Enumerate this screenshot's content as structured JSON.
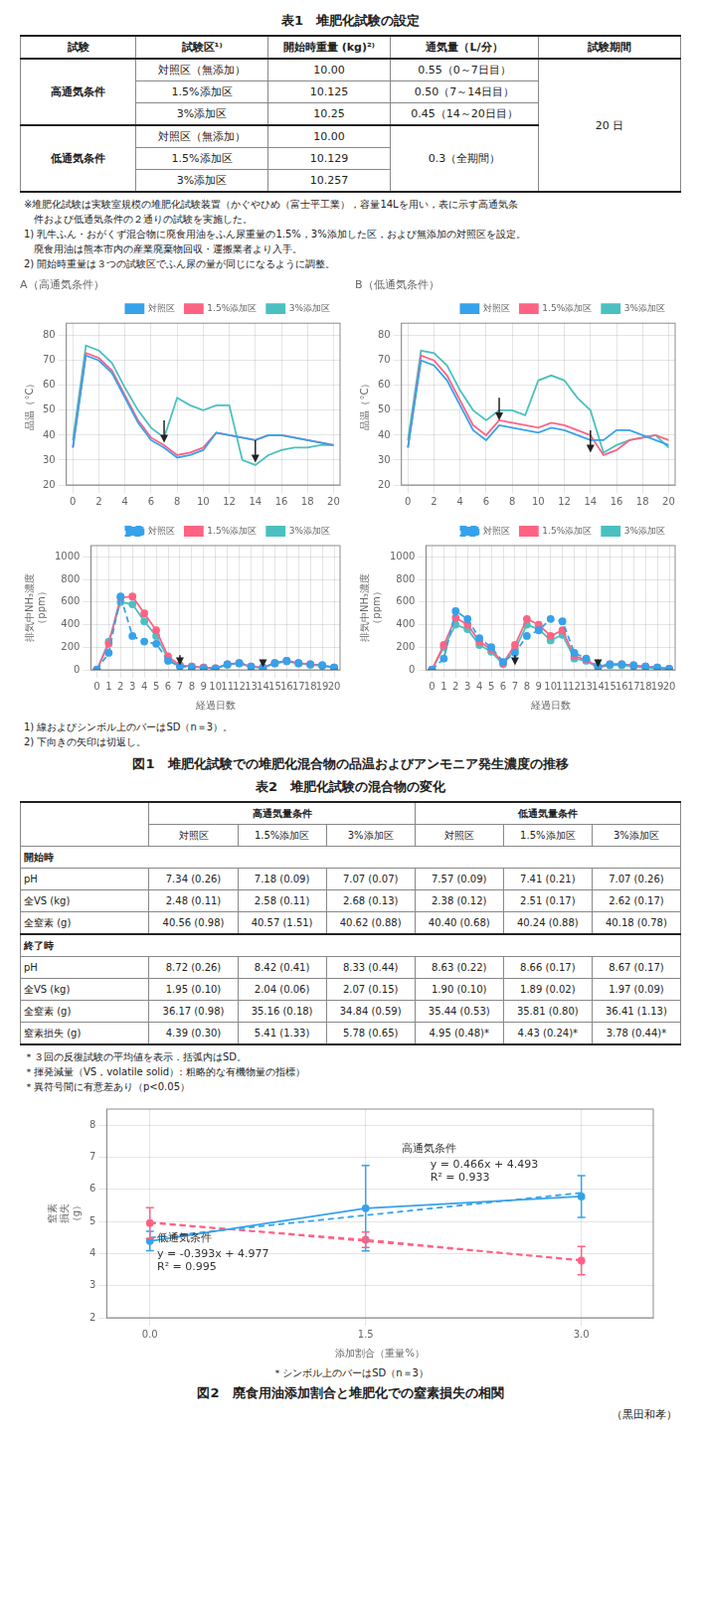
{
  "chart_data": [
    {
      "type": "line",
      "title": "A（高通気条件）",
      "ylabel": "品温（°C）",
      "x": [
        0,
        1,
        2,
        3,
        4,
        5,
        6,
        7,
        8,
        9,
        10,
        11,
        12,
        13,
        14,
        15,
        16,
        17,
        18,
        19,
        20
      ],
      "xlim": [
        -0.5,
        20.5
      ],
      "xticks": [
        0,
        2,
        4,
        6,
        8,
        10,
        12,
        14,
        16,
        18,
        20
      ],
      "ylim": [
        20,
        85
      ],
      "yticks": [
        20,
        30,
        40,
        50,
        60,
        70,
        80
      ],
      "grid": true,
      "legend": "upper right",
      "series": [
        {
          "name": "対照区",
          "color": "#36a2eb",
          "values": [
            35,
            72,
            70,
            65,
            55,
            45,
            38,
            35,
            31,
            32,
            34,
            41,
            40,
            39,
            38,
            40,
            40,
            39,
            38,
            37,
            36
          ]
        },
        {
          "name": "1.5%添加区",
          "color": "#ff6384",
          "values": [
            35,
            73,
            71,
            66,
            56,
            46,
            39,
            36,
            32,
            33,
            35,
            41,
            40,
            39,
            38,
            40,
            40,
            39,
            38,
            37,
            36
          ]
        },
        {
          "name": "3%添加区",
          "color": "#4bc0c0",
          "values": [
            38,
            76,
            74,
            69,
            59,
            50,
            43,
            39,
            55,
            52,
            50,
            52,
            52,
            30,
            28,
            32,
            34,
            35,
            35,
            36,
            36
          ]
        }
      ],
      "annotations": [
        {
          "type": "arrow",
          "x": 7,
          "y_start": 46,
          "y_end": 37
        },
        {
          "type": "arrow",
          "x": 14,
          "y_start": 38,
          "y_end": 29
        }
      ]
    },
    {
      "type": "line",
      "title": "B（低通気条件）",
      "ylabel": "品温（°C）",
      "x": [
        0,
        1,
        2,
        3,
        4,
        5,
        6,
        7,
        8,
        9,
        10,
        11,
        12,
        13,
        14,
        15,
        16,
        17,
        18,
        19,
        20
      ],
      "xlim": [
        -0.5,
        20.5
      ],
      "xticks": [
        0,
        2,
        4,
        6,
        8,
        10,
        12,
        14,
        16,
        18,
        20
      ],
      "ylim": [
        20,
        85
      ],
      "yticks": [
        20,
        30,
        40,
        50,
        60,
        70,
        80
      ],
      "grid": true,
      "legend": "upper right",
      "series": [
        {
          "name": "対照区",
          "color": "#36a2eb",
          "values": [
            35,
            70,
            68,
            62,
            52,
            42,
            38,
            44,
            43,
            42,
            41,
            43,
            42,
            40,
            38,
            38,
            42,
            42,
            40,
            38,
            36
          ]
        },
        {
          "name": "1.5%添加区",
          "color": "#ff6384",
          "values": [
            35,
            72,
            70,
            64,
            54,
            44,
            40,
            46,
            45,
            44,
            43,
            45,
            44,
            42,
            40,
            32,
            34,
            38,
            39,
            40,
            38
          ]
        },
        {
          "name": "3%添加区",
          "color": "#4bc0c0",
          "values": [
            38,
            74,
            73,
            68,
            58,
            50,
            46,
            50,
            50,
            48,
            62,
            64,
            62,
            55,
            50,
            33,
            36,
            38,
            39,
            40,
            35
          ]
        }
      ],
      "annotations": [
        {
          "type": "arrow",
          "x": 7,
          "y_start": 55,
          "y_end": 46
        },
        {
          "type": "arrow",
          "x": 14,
          "y_start": 42,
          "y_end": 33
        }
      ]
    },
    {
      "type": "line",
      "xlabel": "経過日数",
      "ylabel": "排気中NH₃濃度\n（ppm）",
      "x": [
        0,
        1,
        2,
        3,
        4,
        5,
        6,
        7,
        8,
        9,
        10,
        11,
        12,
        13,
        14,
        15,
        16,
        17,
        18,
        19,
        20
      ],
      "xlim": [
        -0.5,
        20.5
      ],
      "xticks": [
        0,
        1,
        2,
        3,
        4,
        5,
        6,
        7,
        8,
        9,
        10,
        11,
        12,
        13,
        14,
        15,
        16,
        17,
        18,
        19,
        20
      ],
      "ylim": [
        0,
        1100
      ],
      "yticks": [
        0,
        200,
        400,
        600,
        800,
        1000
      ],
      "grid": true,
      "legend": "upper right",
      "series": [
        {
          "name": "対照区",
          "color": "#36a2eb",
          "marker": "circle",
          "line_style": "dashed",
          "values": [
            0,
            150,
            650,
            300,
            250,
            230,
            80,
            30,
            20,
            15,
            10,
            50,
            60,
            30,
            20,
            60,
            80,
            60,
            50,
            40,
            20
          ]
        },
        {
          "name": "1.5%添加区",
          "color": "#ff6384",
          "marker": "circle",
          "line_style": "solid",
          "values": [
            0,
            230,
            640,
            650,
            500,
            350,
            120,
            40,
            30,
            20,
            15,
            50,
            60,
            30,
            20,
            60,
            80,
            60,
            50,
            40,
            20
          ]
        },
        {
          "name": "3%添加区",
          "color": "#4bc0c0",
          "marker": "circle",
          "line_style": "solid",
          "values": [
            0,
            250,
            600,
            580,
            430,
            300,
            100,
            35,
            30,
            20,
            15,
            45,
            55,
            25,
            18,
            55,
            75,
            55,
            45,
            35,
            18
          ]
        }
      ],
      "annotations": [
        {
          "type": "arrow",
          "x": 7,
          "y_start": 130,
          "y_end": 40
        },
        {
          "type": "arrow",
          "x": 14,
          "y_start": 90,
          "y_end": 22
        }
      ]
    },
    {
      "type": "line",
      "xlabel": "経過日数",
      "ylabel": "排気中NH₃濃度\n（ppm）",
      "x": [
        0,
        1,
        2,
        3,
        4,
        5,
        6,
        7,
        8,
        9,
        10,
        11,
        12,
        13,
        14,
        15,
        16,
        17,
        18,
        19,
        20
      ],
      "xlim": [
        -0.5,
        20.5
      ],
      "xticks": [
        0,
        1,
        2,
        3,
        4,
        5,
        6,
        7,
        8,
        9,
        10,
        11,
        12,
        13,
        14,
        15,
        16,
        17,
        18,
        19,
        20
      ],
      "ylim": [
        0,
        1100
      ],
      "yticks": [
        0,
        200,
        400,
        600,
        800,
        1000
      ],
      "grid": true,
      "legend": "upper right",
      "series": [
        {
          "name": "対照区",
          "color": "#36a2eb",
          "marker": "circle",
          "line_style": "dashed",
          "values": [
            0,
            100,
            520,
            450,
            280,
            200,
            70,
            150,
            300,
            350,
            450,
            430,
            150,
            100,
            30,
            50,
            50,
            40,
            30,
            20,
            10
          ]
        },
        {
          "name": "1.5%添加区",
          "color": "#ff6384",
          "marker": "circle",
          "line_style": "solid",
          "values": [
            0,
            220,
            460,
            400,
            250,
            180,
            60,
            220,
            450,
            400,
            300,
            350,
            120,
            90,
            25,
            50,
            50,
            40,
            30,
            20,
            10
          ]
        },
        {
          "name": "3%添加区",
          "color": "#4bc0c0",
          "marker": "circle",
          "line_style": "solid",
          "values": [
            0,
            200,
            400,
            360,
            220,
            160,
            50,
            180,
            400,
            360,
            260,
            310,
            100,
            80,
            20,
            40,
            40,
            30,
            20,
            15,
            8
          ]
        }
      ],
      "annotations": [
        {
          "type": "arrow",
          "x": 7,
          "y_start": 130,
          "y_end": 40
        },
        {
          "type": "arrow",
          "x": 14,
          "y_start": 90,
          "y_end": 22
        }
      ]
    },
    {
      "type": "line",
      "xlabel": "添加割合（重量%）",
      "ylabel": "窒素\n損失\n（g）",
      "x": [
        0,
        1.5,
        3
      ],
      "xlim": [
        -0.3,
        3.5
      ],
      "xticks": [
        {
          "value": 0,
          "label": "0.0"
        },
        1.5,
        {
          "value": 3,
          "label": "3.0"
        }
      ],
      "ylim": [
        2.0,
        8.5
      ],
      "yticks": [
        2,
        3,
        4,
        5,
        6,
        7,
        8
      ],
      "grid": true,
      "series": [
        {
          "color": "#36a2eb",
          "marker": "circle",
          "line_style": "solid",
          "values": [
            4.39,
            5.41,
            5.78
          ],
          "errors": [
            0.3,
            1.33,
            0.65
          ]
        },
        {
          "color": "#ff6384",
          "marker": "circle",
          "line_style": "dashed",
          "values": [
            4.95,
            4.43,
            3.78
          ],
          "errors": [
            0.48,
            0.24,
            0.44
          ]
        },
        {
          "color": "#36a2eb",
          "line_style": "dashed",
          "x": [
            0,
            3
          ],
          "values": [
            4.493,
            5.891
          ]
        },
        {
          "color": "#ff6384",
          "line_style": "dashed",
          "x": [
            0,
            3
          ],
          "values": [
            4.977,
            3.798
          ]
        }
      ],
      "annotations": [
        {
          "type": "text",
          "text": "高通気条件",
          "x": 1.75,
          "y": 7.1
        },
        {
          "type": "text",
          "text": "y = 0.466x + 4.493",
          "x": 1.95,
          "y": 6.6
        },
        {
          "type": "text",
          "text": "R² = 0.933",
          "x": 1.95,
          "y": 6.18
        },
        {
          "type": "text",
          "text": "低通気条件",
          "x": 0.05,
          "y": 4.3
        },
        {
          "type": "text",
          "text": "y = -0.393x + 4.977",
          "x": 0.05,
          "y": 3.82
        },
        {
          "type": "text",
          "text": "R² = 0.995",
          "x": 0.05,
          "y": 3.4
        }
      ]
    }
  ],
  "tables": [
    {
      "title": "表1　堆肥化試験の設定",
      "header": [
        "試験",
        "試験区¹⁾",
        "開始時重量 (kg)²⁾",
        "通気量（L/分）",
        "試験期間"
      ],
      "groups": [
        {
          "label": "高通気条件",
          "rows": [
            [
              "対照区（無添加）",
              "10.00",
              "0.55（0～7日目）"
            ],
            [
              "1.5%添加区",
              "10.125",
              "0.50（7～14日目）"
            ],
            [
              "3%添加区",
              "10.25",
              "0.45（14～20日目）"
            ]
          ]
        },
        {
          "label": "低通気条件",
          "rows": [
            [
              "対照区（無添加）",
              "10.00"
            ],
            [
              "1.5%添加区",
              "10.129"
            ],
            [
              "3%添加区",
              "10.257"
            ]
          ],
          "merged": "0.3（全期間）"
        }
      ],
      "merged_last": "20 日"
    },
    {
      "title": "表2　堆肥化試験の混合物の変化",
      "groups": [
        {
          "label": "高通気量条件",
          "columns": [
            "対照区",
            "1.5%添加区",
            "3%添加区"
          ]
        },
        {
          "label": "低通気量条件",
          "columns": [
            "対照区",
            "1.5%添加区",
            "3%添加区"
          ]
        }
      ],
      "sections": [
        {
          "label": "開始時",
          "rows": [
            {
              "label": "pH",
              "cells": [
                "7.34 (0.26)",
                "7.18 (0.09)",
                "7.07 (0.07)",
                "7.57 (0.09)",
                "7.41 (0.21)",
                "7.07 (0.26)"
              ]
            },
            {
              "label": "全VS (kg)",
              "cells": [
                "2.48 (0.11)",
                "2.58 (0.11)",
                "2.68 (0.13)",
                "2.38 (0.12)",
                "2.51 (0.17)",
                "2.62 (0.17)"
              ]
            },
            {
              "label": "全窒素 (g)",
              "cells": [
                "40.56 (0.98)",
                "40.57 (1.51)",
                "40.62 (0.88)",
                "40.40 (0.68)",
                "40.24 (0.88)",
                "40.18 (0.78)"
              ]
            }
          ]
        },
        {
          "label": "終了時",
          "rows": [
            {
              "label": "pH",
              "cells": [
                "8.72 (0.26)",
                "8.42 (0.41)",
                "8.33 (0.44)",
                "8.63 (0.22)",
                "8.66 (0.17)",
                "8.67 (0.17)"
              ]
            },
            {
              "label": "全VS (kg)",
              "cells": [
                "1.95 (0.10)",
                "2.04 (0.06)",
                "2.07 (0.15)",
                "1.90 (0.10)",
                "1.89 (0.02)",
                "1.97 (0.09)"
              ]
            },
            {
              "label": "全窒素 (g)",
              "cells": [
                "36.17 (0.98)",
                "35.16 (0.18)",
                "34.84 (0.59)",
                "35.44 (0.53)",
                "35.81 (0.80)",
                "36.41 (1.13)"
              ]
            },
            {
              "label": "窒素損失 (g)",
              "cells": [
                "4.39 (0.30)",
                "5.41 (1.33)",
                "5.78 (0.65)",
                "4.95 (0.48)*",
                "4.43 (0.24)*",
                "3.78 (0.44)*"
              ]
            }
          ]
        }
      ]
    }
  ],
  "texts": {
    "notes": [
      "※堆肥化試験は実験室規模の堆肥化試験装置（かぐやひめ（富士平工業），容量14Lを用い，表に示す高通気条",
      "　件および低通気条件の２通りの試験を実施した。",
      "1) 乳牛ふん・おがくず混合物に廃食用油をふん尿重量の1.5%，3%添加した区，および無添加の対照区を設定。",
      "　廃食用油は熊本市内の産業廃棄物回収・運搬業者より入手。",
      "2) 開始時重量は３つの試験区でふん尿の量が同じになるように調整。"
    ],
    "fig1_notes": [
      "1) 線およびシンボル上のバーはSD（n＝3）。",
      "2) 下向きの矢印は切返し。"
    ],
    "fig1_title": "図1　堆肥化試験での堆肥化混合物の品温およびアンモニア発生濃度の推移",
    "table2_notes": [
      "＊３回の反復試験の平均値を表示．括弧内はSD。",
      "＊揮発減量（VS，volatile solid）: 粗略的な有機物量の指標）",
      "＊異符号間に有意差あり（p<0.05）"
    ],
    "fig2_note": "＊シンボル上のバーはSD（n＝3）",
    "fig2_title": "図2　廃食用油添加割合と堆肥化での窒素損失の相関",
    "author": "（黒田和孝）"
  }
}
